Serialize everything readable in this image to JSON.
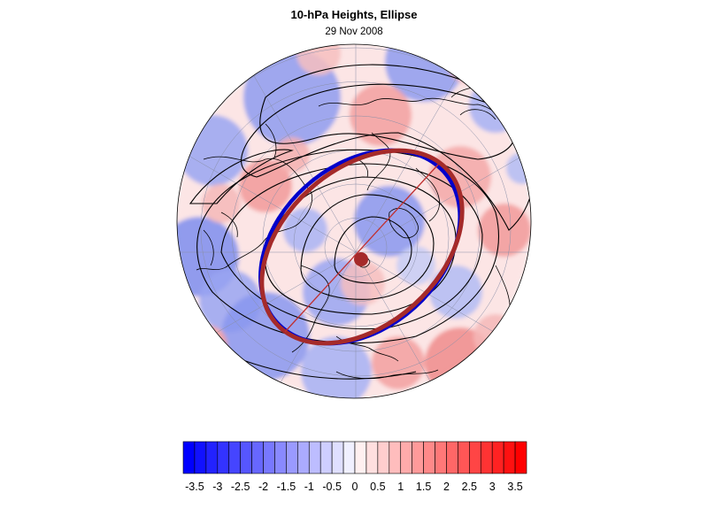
{
  "figure": {
    "title": "10-hPa Heights, Ellipse",
    "subtitle": "29 Nov 2008"
  },
  "colorbar": {
    "min": -3.75,
    "max": 3.75,
    "step": 0.25,
    "colors_negative": "#0000ff",
    "colors_positive": "#ff0000",
    "tick_labels": [
      "-3.5",
      "-3",
      "-2.5",
      "-2",
      "-1.5",
      "-1",
      "-0.5",
      "0",
      "0.5",
      "1",
      "1.5",
      "2",
      "2.5",
      "3",
      "3.5"
    ]
  },
  "map": {
    "projection": "orthographic north polar",
    "field": "standardized height anomaly",
    "ellipse_colors": {
      "observed": "#0000cc",
      "fitted": "#a52a2a"
    },
    "contour_color": "#000000"
  }
}
